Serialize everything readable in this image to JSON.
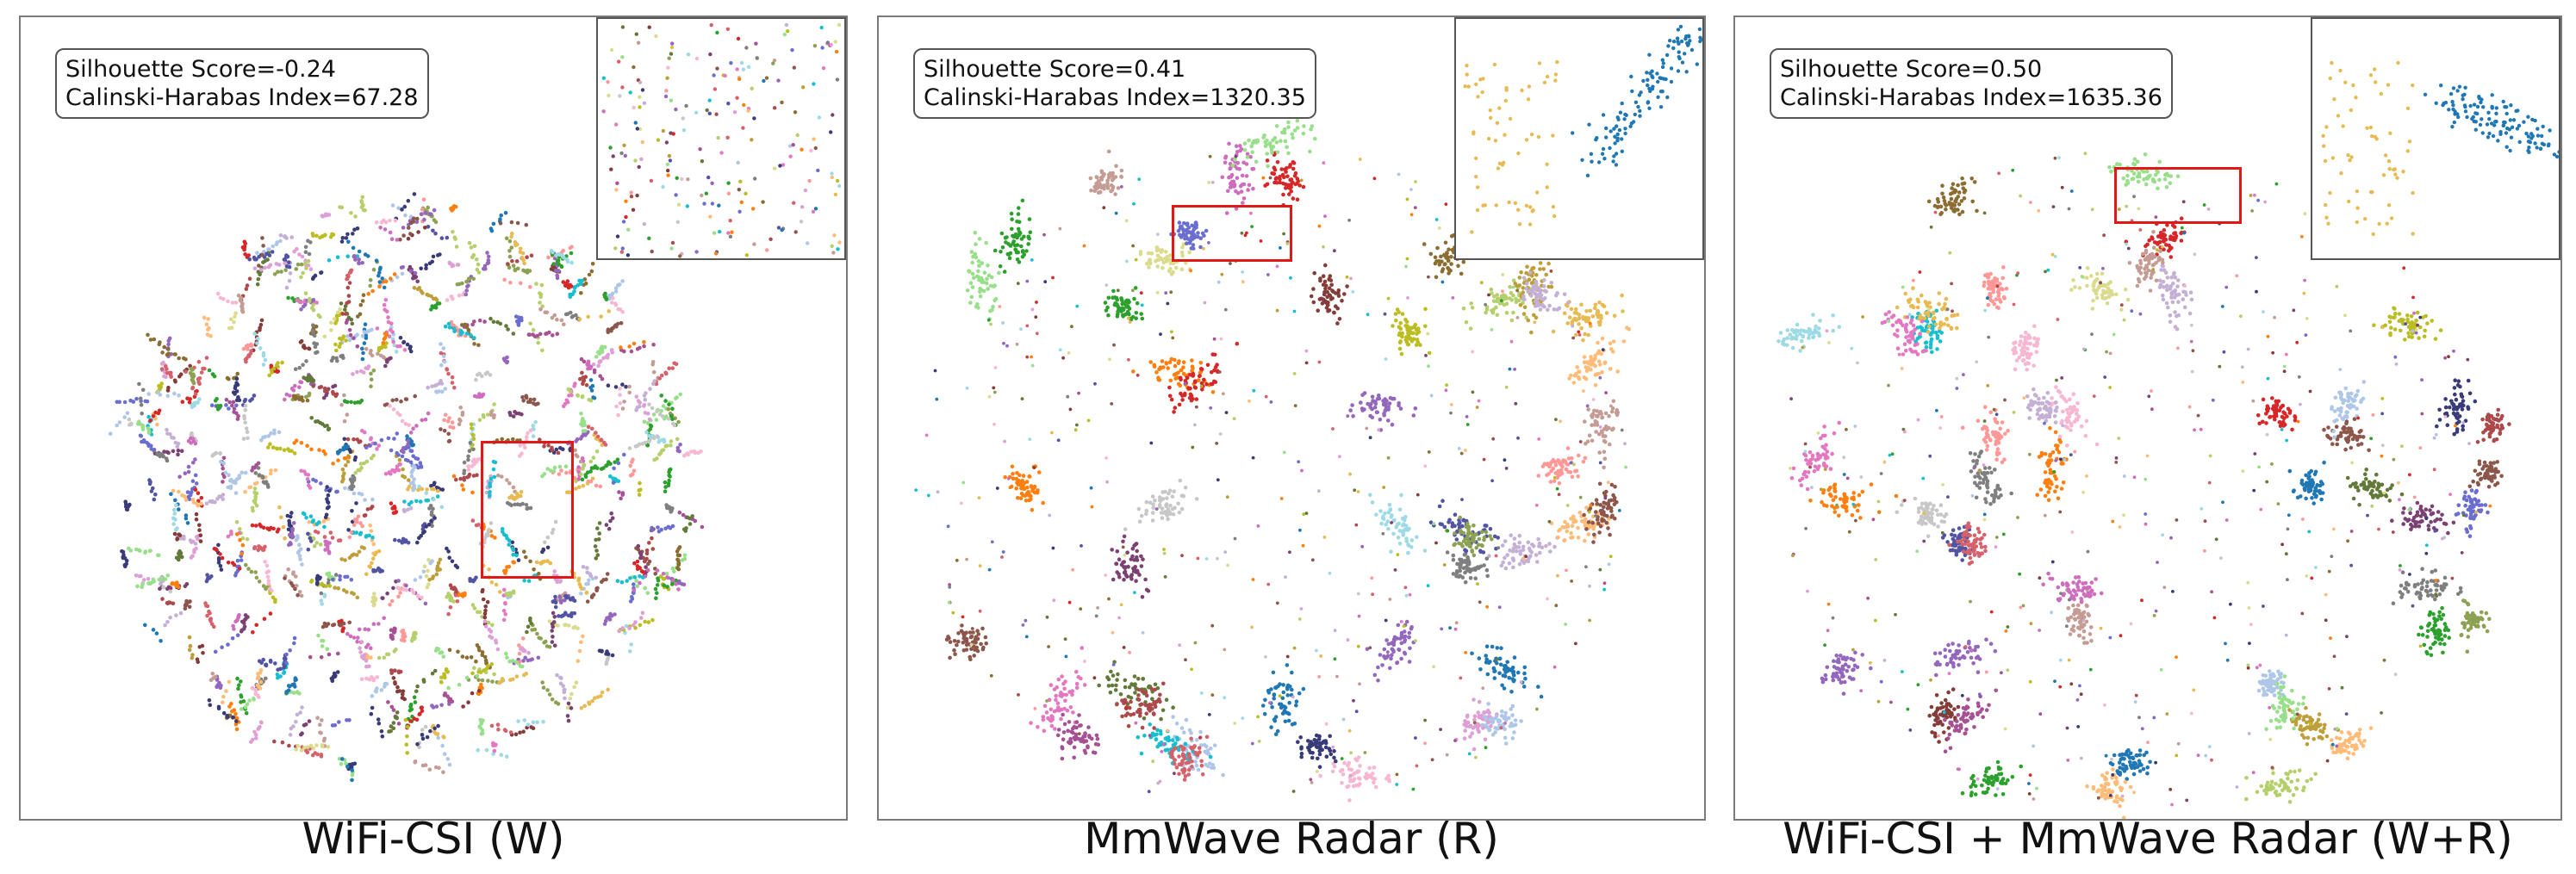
{
  "chart_data": [
    {
      "type": "scatter",
      "title": "WiFi-CSI (W)",
      "annotation": {
        "silhouette": "Silhouette Score=-0.24",
        "calinski": "Calinski-Harabas Index=67.28"
      },
      "silhouette_score": -0.24,
      "calinski_harabasz_index": 67.28,
      "cluster_separation": "poor",
      "inset": true,
      "highlight_box": true
    },
    {
      "type": "scatter",
      "title": "MmWave Radar (R)",
      "annotation": {
        "silhouette": "Silhouette Score=0.41",
        "calinski": "Calinski-Harabas Index=1320.35"
      },
      "silhouette_score": 0.41,
      "calinski_harabasz_index": 1320.35,
      "cluster_separation": "moderate",
      "inset": true,
      "highlight_box": true
    },
    {
      "type": "scatter",
      "title": "WiFi-CSI + MmWave Radar (W+R)",
      "annotation": {
        "silhouette": "Silhouette Score=0.50",
        "calinski": "Calinski-Harabas Index=1635.36"
      },
      "silhouette_score": 0.5,
      "calinski_harabasz_index": 1635.36,
      "cluster_separation": "good",
      "inset": true,
      "highlight_box": true
    }
  ],
  "colors": {
    "palette": [
      "#1f77b4",
      "#aec7e8",
      "#ff7f0e",
      "#ffbb78",
      "#2ca02c",
      "#98df8a",
      "#d62728",
      "#ff9896",
      "#9467bd",
      "#c5b0d5",
      "#8c564b",
      "#c49c94",
      "#e377c2",
      "#f7b6d2",
      "#7f7f7f",
      "#c7c7c7",
      "#bcbd22",
      "#dbdb8d",
      "#17becf",
      "#9edae5",
      "#393b79",
      "#5254a3",
      "#6b6ecf",
      "#637939",
      "#8ca252",
      "#b5cf6b",
      "#8c6d31",
      "#bd9e39",
      "#e7ba52",
      "#843c39",
      "#ad494a",
      "#d6616b",
      "#7b4173",
      "#a55194",
      "#ce6dbd",
      "#de9ed6"
    ],
    "highlight": "#e01818"
  }
}
